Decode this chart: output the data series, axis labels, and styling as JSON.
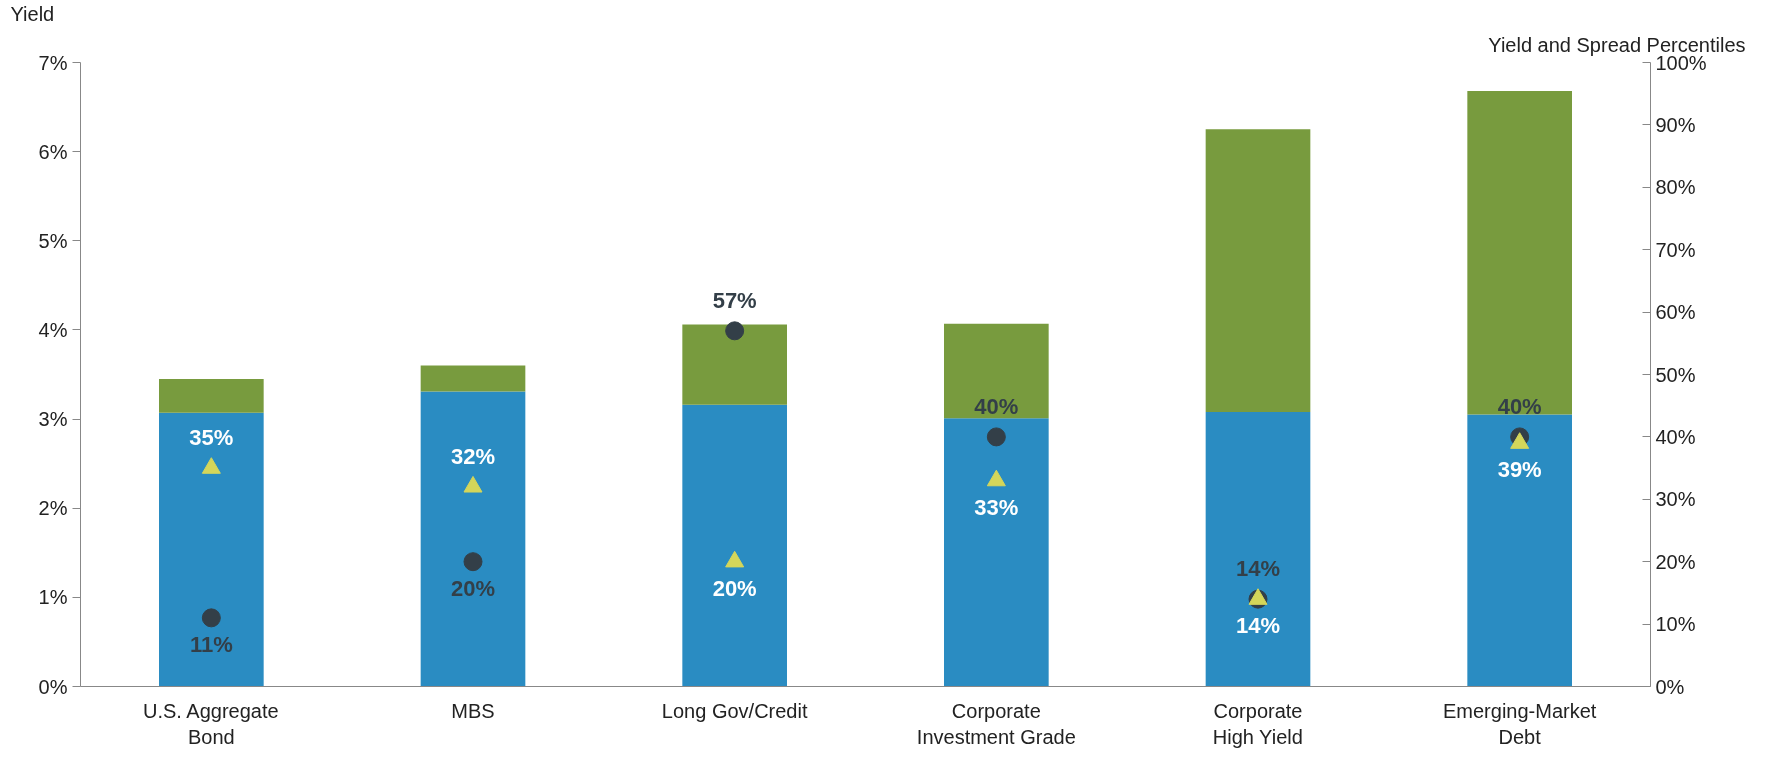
{
  "chart_data": {
    "type": "bar",
    "stacked": true,
    "ylabel": "Yield",
    "y2label": "Yield and Spread Percentiles",
    "categories": [
      "U.S. Aggregate\nBond",
      "MBS",
      "Long Gov/Credit",
      "Corporate\nInvestment Grade",
      "Corporate\nHigh Yield",
      "Emerging-Market\nDebt"
    ],
    "series": [
      {
        "color": "#2a8cc2",
        "values": [
          3.07,
          3.31,
          3.16,
          3.01,
          3.08,
          3.05
        ]
      },
      {
        "color": "#789b3e",
        "values": [
          0.38,
          0.29,
          0.9,
          1.06,
          3.17,
          3.63
        ]
      },
      {
        "type": "scatter",
        "axis": "y2",
        "marker": "circle",
        "color": "#333f48",
        "values": [
          11,
          20,
          57,
          40,
          14,
          40
        ],
        "value_labels": [
          "11%",
          "20%",
          "57%",
          "40%",
          "14%",
          "40%"
        ]
      },
      {
        "type": "scatter",
        "axis": "y2",
        "marker": "triangle",
        "color": "#d4d65a",
        "values": [
          35,
          32,
          20,
          33,
          14,
          39
        ],
        "value_labels": [
          "35%",
          "32%",
          "20%",
          "33%",
          "14%",
          "39%"
        ]
      }
    ],
    "ylim": [
      0,
      7
    ],
    "yticks": [
      {
        "value": 0,
        "label": "0%"
      },
      {
        "value": 1,
        "label": "1%"
      },
      {
        "value": 2,
        "label": "2%"
      },
      {
        "value": 3,
        "label": "3%"
      },
      {
        "value": 4,
        "label": "4%"
      },
      {
        "value": 5,
        "label": "5%"
      },
      {
        "value": 6,
        "label": "6%"
      },
      {
        "value": 7,
        "label": "7%"
      }
    ],
    "y2lim": [
      0,
      100
    ],
    "y2ticks": [
      {
        "value": 0,
        "label": "0%"
      },
      {
        "value": 10,
        "label": "10%"
      },
      {
        "value": 20,
        "label": "20%"
      },
      {
        "value": 30,
        "label": "30%"
      },
      {
        "value": 40,
        "label": "40%"
      },
      {
        "value": 50,
        "label": "50%"
      },
      {
        "value": 60,
        "label": "60%"
      },
      {
        "value": 70,
        "label": "70%"
      },
      {
        "value": 80,
        "label": "80%"
      },
      {
        "value": 90,
        "label": "90%"
      },
      {
        "value": 100,
        "label": "100%"
      }
    ],
    "grid": false
  }
}
